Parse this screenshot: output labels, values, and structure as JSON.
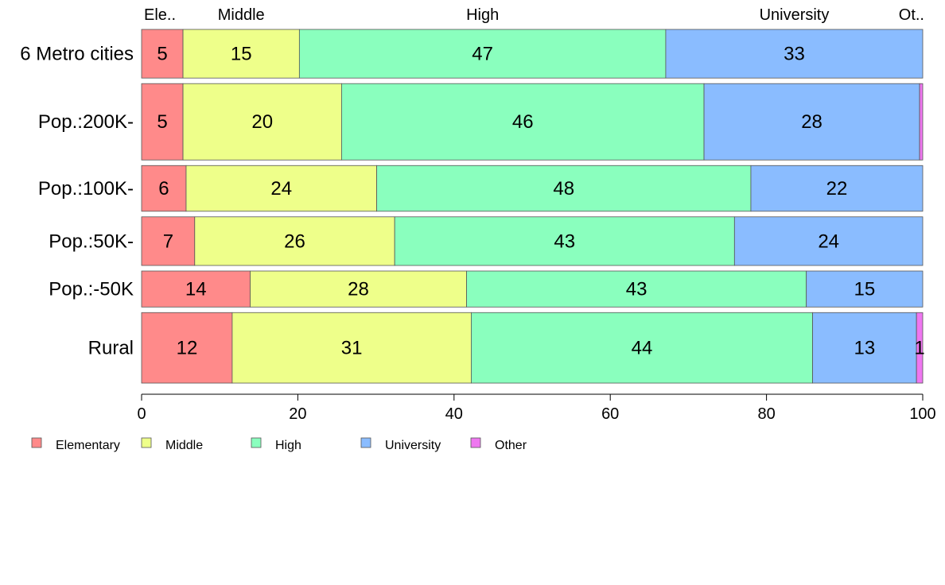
{
  "chart_data": {
    "type": "bar",
    "orientation": "horizontal",
    "stacked": true,
    "xlim": [
      0,
      100
    ],
    "x_ticks": [
      0,
      20,
      40,
      60,
      80,
      100
    ],
    "header_labels": [
      "Ele..",
      "Middle",
      "High",
      "University",
      "Ot.."
    ],
    "categories": [
      "6 Metro cities",
      "Pop.:200K-",
      "Pop.:100K-",
      "Pop.:50K-",
      "Pop.:-50K",
      "Rural"
    ],
    "series": [
      {
        "name": "Elementary",
        "color": "#FF8A8A",
        "values": [
          5.3,
          5.3,
          5.7,
          6.8,
          13.9,
          11.6
        ]
      },
      {
        "name": "Middle",
        "color": "#EEFF8A",
        "values": [
          14.9,
          20.3,
          24.4,
          25.6,
          27.7,
          30.6
        ]
      },
      {
        "name": "High",
        "color": "#8AFFBE",
        "values": [
          46.9,
          46.4,
          47.9,
          43.5,
          43.5,
          43.7
        ]
      },
      {
        "name": "University",
        "color": "#8ABCFF",
        "values": [
          32.9,
          27.6,
          22.0,
          24.1,
          14.9,
          13.3
        ]
      },
      {
        "name": "Other",
        "color": "#EE77F0",
        "values": [
          0.0,
          0.4,
          0.0,
          0.0,
          0.0,
          0.8
        ]
      }
    ],
    "bar_labels": [
      [
        "5",
        "15",
        "47",
        "33",
        ""
      ],
      [
        "5",
        "20",
        "46",
        "28",
        ""
      ],
      [
        "6",
        "24",
        "48",
        "22",
        ""
      ],
      [
        "7",
        "26",
        "43",
        "24",
        ""
      ],
      [
        "14",
        "28",
        "43",
        "15",
        ""
      ],
      [
        "12",
        "31",
        "44",
        "13",
        "1"
      ]
    ],
    "row_weights": [
      1.0,
      1.57,
      0.94,
      1.0,
      0.74,
      1.45
    ],
    "grid": false,
    "legend": "bottom-left"
  }
}
